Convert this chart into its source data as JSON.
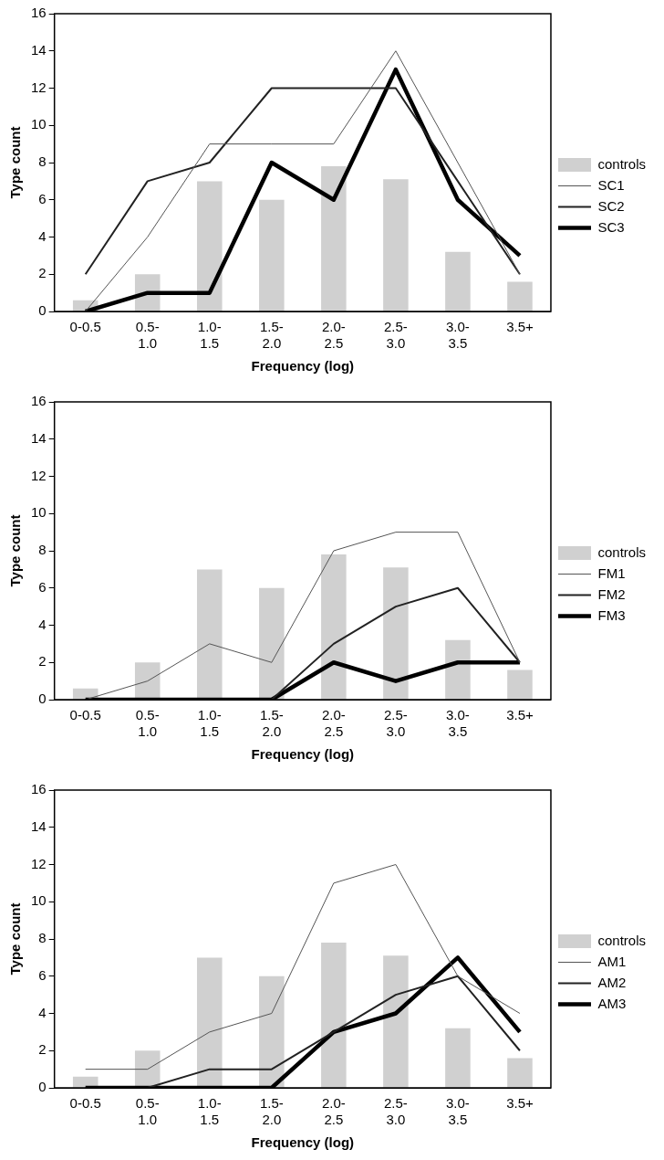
{
  "chart_data": [
    {
      "type": "bar",
      "categories": [
        "0-0.5",
        "0.5- 1.0",
        "1.0- 1.5",
        "1.5- 2.0",
        "2.0- 2.5",
        "2.5- 3.0",
        "3.0- 3.5",
        "3.5+"
      ],
      "xlabel": "Frequency (log)",
      "ylabel": "Type count",
      "ylim": [
        0,
        16
      ],
      "yticks": [
        0,
        2,
        4,
        6,
        8,
        10,
        12,
        14,
        16
      ],
      "grid": false,
      "legend": "right",
      "marker": "none",
      "series": [
        {
          "name": "controls",
          "color": "#d0d0d0",
          "values": [
            0.6,
            2,
            7,
            6,
            7.8,
            7.1,
            3.2,
            1.6
          ]
        },
        {
          "name": "SC1",
          "type": "line",
          "color": "#555555",
          "values": [
            0,
            4,
            9,
            9,
            9,
            14,
            8,
            2
          ]
        },
        {
          "name": "SC2",
          "type": "line",
          "color": "#222222",
          "values": [
            2,
            7,
            8,
            12,
            12,
            12,
            7,
            2
          ]
        },
        {
          "name": "SC3",
          "type": "line",
          "color": "#000000",
          "values": [
            0,
            1,
            1,
            8,
            6,
            13,
            6,
            3
          ]
        }
      ]
    },
    {
      "type": "bar",
      "categories": [
        "0-0.5",
        "0.5- 1.0",
        "1.0- 1.5",
        "1.5- 2.0",
        "2.0- 2.5",
        "2.5- 3.0",
        "3.0- 3.5",
        "3.5+"
      ],
      "xlabel": "Frequency (log)",
      "ylabel": "Type count",
      "ylim": [
        0,
        16
      ],
      "yticks": [
        0,
        2,
        4,
        6,
        8,
        10,
        12,
        14,
        16
      ],
      "grid": false,
      "legend": "right",
      "marker": "none",
      "series": [
        {
          "name": "controls",
          "color": "#d0d0d0",
          "values": [
            0.6,
            2,
            7,
            6,
            7.8,
            7.1,
            3.2,
            1.6
          ]
        },
        {
          "name": "FM1",
          "type": "line",
          "color": "#555555",
          "values": [
            0,
            1,
            3,
            2,
            8,
            9,
            9,
            2
          ]
        },
        {
          "name": "FM2",
          "type": "line",
          "color": "#222222",
          "values": [
            0,
            0,
            0,
            0,
            3,
            5,
            6,
            2
          ]
        },
        {
          "name": "FM3",
          "type": "line",
          "color": "#000000",
          "values": [
            0,
            0,
            0,
            0,
            2,
            1,
            2,
            2
          ]
        }
      ]
    },
    {
      "type": "bar",
      "categories": [
        "0-0.5",
        "0.5- 1.0",
        "1.0- 1.5",
        "1.5- 2.0",
        "2.0- 2.5",
        "2.5- 3.0",
        "3.0- 3.5",
        "3.5+"
      ],
      "xlabel": "Frequency (log)",
      "ylabel": "Type count",
      "ylim": [
        0,
        16
      ],
      "yticks": [
        0,
        2,
        4,
        6,
        8,
        10,
        12,
        14,
        16
      ],
      "grid": false,
      "legend": "right",
      "marker": "none",
      "series": [
        {
          "name": "controls",
          "color": "#d0d0d0",
          "values": [
            0.6,
            2,
            7,
            6,
            7.8,
            7.1,
            3.2,
            1.6
          ]
        },
        {
          "name": "AM1",
          "type": "line",
          "color": "#555555",
          "values": [
            1,
            1,
            3,
            4,
            11,
            12,
            6,
            4
          ]
        },
        {
          "name": "AM2",
          "type": "line",
          "color": "#222222",
          "values": [
            0,
            0,
            1,
            1,
            3,
            5,
            6,
            2
          ]
        },
        {
          "name": "AM3",
          "type": "line",
          "color": "#000000",
          "values": [
            0,
            0,
            0,
            0,
            3,
            4,
            7,
            3
          ]
        }
      ]
    }
  ]
}
